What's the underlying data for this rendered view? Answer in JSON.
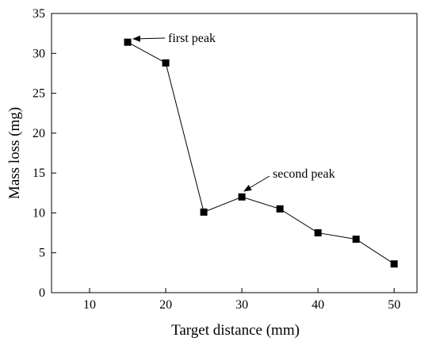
{
  "chart_data": {
    "type": "line",
    "title": "",
    "xlabel": "Target distance (mm)",
    "ylabel": "Mass loss (mg)",
    "xlim": [
      5,
      53
    ],
    "ylim": [
      0,
      35
    ],
    "xticks": [
      10,
      20,
      30,
      40,
      50
    ],
    "yticks": [
      0,
      5,
      10,
      15,
      20,
      25,
      30,
      35
    ],
    "grid": false,
    "legend": "none",
    "marker": "square",
    "series": [
      {
        "x": [
          15,
          20,
          25,
          30,
          35,
          40,
          45,
          50
        ],
        "y": [
          31.4,
          28.8,
          10.1,
          12.0,
          10.5,
          7.5,
          6.7,
          3.6
        ]
      }
    ],
    "annotations": [
      {
        "text": "first peak",
        "x": 15,
        "y": 31.4
      },
      {
        "text": "second peak",
        "x": 30,
        "y": 12.0
      }
    ]
  }
}
